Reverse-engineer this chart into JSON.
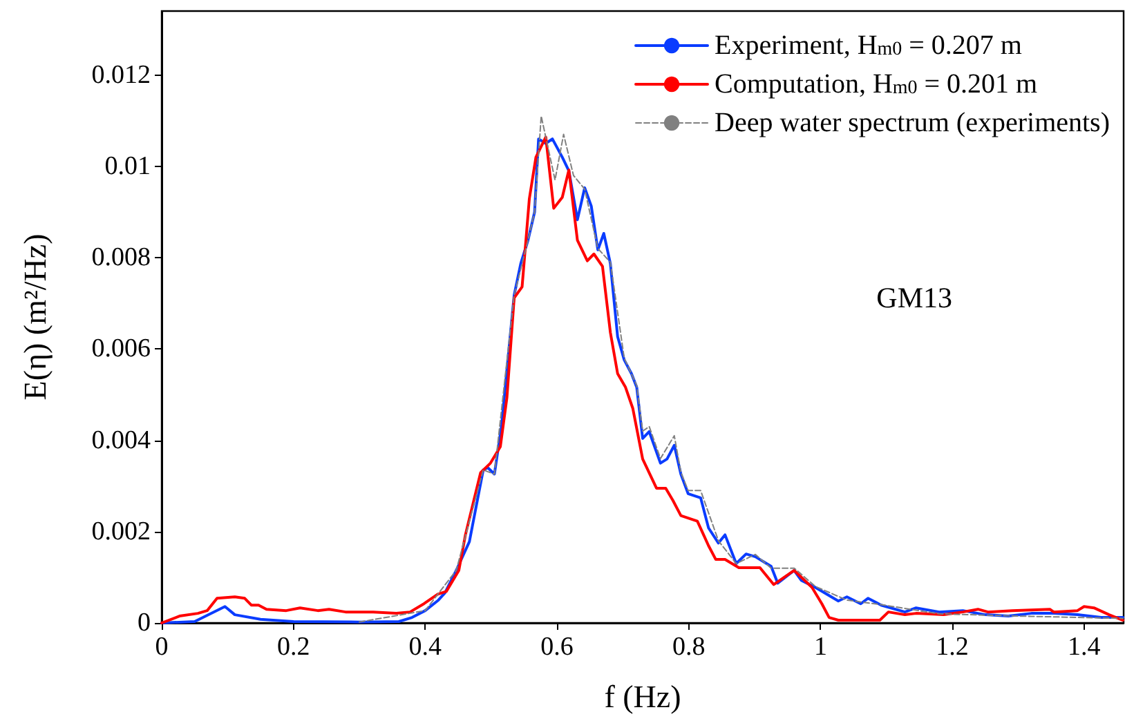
{
  "chart_data": {
    "type": "line",
    "xlabel": "f (Hz)",
    "ylabel": "E(η) (m²/Hz)",
    "annotations": [
      "GM13"
    ],
    "legend": "top right",
    "grid": false,
    "xlim": [
      0,
      1.46
    ],
    "xticks": [
      0,
      0.2,
      0.4,
      0.6,
      0.8,
      1,
      1.2,
      1.4
    ],
    "ylim": [
      0,
      0.0134
    ],
    "yticks": [
      0,
      0.002,
      0.004,
      0.006,
      0.008,
      0.01,
      0.012
    ],
    "series": [
      {
        "name": "Experiment, H$_{m0}$ = 0.207 m",
        "color": "#0a3cff",
        "x": [
          0,
          0.05,
          0.096,
          0.111,
          0.15,
          0.2,
          0.3,
          0.36,
          0.38,
          0.4,
          0.42,
          0.43,
          0.447,
          0.467,
          0.488,
          0.495,
          0.505,
          0.516,
          0.524,
          0.535,
          0.545,
          0.556,
          0.566,
          0.572,
          0.583,
          0.593,
          0.608,
          0.618,
          0.631,
          0.642,
          0.652,
          0.662,
          0.671,
          0.681,
          0.692,
          0.702,
          0.713,
          0.721,
          0.73,
          0.74,
          0.757,
          0.767,
          0.778,
          0.788,
          0.799,
          0.818,
          0.83,
          0.845,
          0.855,
          0.872,
          0.887,
          0.901,
          0.925,
          0.935,
          0.96,
          0.971,
          0.992,
          1.027,
          1.04,
          1.061,
          1.072,
          1.092,
          1.128,
          1.145,
          1.18,
          1.216,
          1.25,
          1.285,
          1.32,
          1.354,
          1.39,
          1.426,
          1.459
        ],
        "values": [
          0,
          3e-05,
          0.00036,
          0.00018,
          8e-05,
          3e-05,
          2e-05,
          3e-05,
          0.00012,
          0.00027,
          0.0005,
          0.00066,
          0.00115,
          0.00178,
          0.00335,
          0.0034,
          0.00326,
          0.00434,
          0.00555,
          0.00718,
          0.00787,
          0.00838,
          0.009,
          0.0106,
          0.0105,
          0.0106,
          0.0102,
          0.0099,
          0.00883,
          0.00953,
          0.00913,
          0.00817,
          0.00853,
          0.00787,
          0.00627,
          0.00576,
          0.00546,
          0.00516,
          0.00404,
          0.00419,
          0.0035,
          0.00359,
          0.00389,
          0.00326,
          0.00283,
          0.00274,
          0.00208,
          0.00175,
          0.00193,
          0.0013,
          0.00151,
          0.00145,
          0.00124,
          0.00087,
          0.00115,
          0.00093,
          0.00078,
          0.00048,
          0.00057,
          0.00042,
          0.00054,
          0.00039,
          0.00024,
          0.00033,
          0.00024,
          0.00027,
          0.00018,
          0.00015,
          0.00021,
          0.00021,
          0.00018,
          0.00012,
          0.00012
        ]
      },
      {
        "name": "Computation, H$_{m0}$ = 0.201 m",
        "color": "#ff0000",
        "x": [
          0,
          0.027,
          0.055,
          0.069,
          0.084,
          0.111,
          0.126,
          0.136,
          0.147,
          0.159,
          0.189,
          0.21,
          0.237,
          0.254,
          0.279,
          0.321,
          0.356,
          0.377,
          0.398,
          0.419,
          0.432,
          0.451,
          0.461,
          0.484,
          0.499,
          0.514,
          0.524,
          0.535,
          0.547,
          0.558,
          0.568,
          0.583,
          0.595,
          0.608,
          0.618,
          0.631,
          0.646,
          0.656,
          0.669,
          0.681,
          0.692,
          0.704,
          0.715,
          0.73,
          0.751,
          0.765,
          0.776,
          0.788,
          0.813,
          0.83,
          0.841,
          0.855,
          0.876,
          0.908,
          0.929,
          0.96,
          0.987,
          1.002,
          1.013,
          1.027,
          1.09,
          1.103,
          1.128,
          1.145,
          1.187,
          1.216,
          1.239,
          1.254,
          1.291,
          1.348,
          1.354,
          1.39,
          1.4,
          1.415,
          1.438,
          1.459
        ],
        "values": [
          0,
          0.00015,
          0.00021,
          0.00027,
          0.00054,
          0.00057,
          0.00054,
          0.00039,
          0.00039,
          0.0003,
          0.00027,
          0.00033,
          0.00027,
          0.0003,
          0.00024,
          0.00024,
          0.00021,
          0.00024,
          0.00042,
          0.00063,
          0.00069,
          0.00115,
          0.00193,
          0.00329,
          0.0035,
          0.00386,
          0.00494,
          0.00712,
          0.00736,
          0.00929,
          0.0102,
          0.01064,
          0.00908,
          0.00932,
          0.00992,
          0.00838,
          0.00793,
          0.00808,
          0.00781,
          0.00636,
          0.00546,
          0.00516,
          0.0047,
          0.00359,
          0.00295,
          0.00295,
          0.00268,
          0.00235,
          0.00223,
          0.00169,
          0.00139,
          0.00139,
          0.00121,
          0.00121,
          0.00084,
          0.00115,
          0.00078,
          0.00042,
          0.00012,
          6e-05,
          6e-05,
          0.00024,
          0.00018,
          0.00021,
          0.00018,
          0.00024,
          0.0003,
          0.00024,
          0.00027,
          0.0003,
          0.00024,
          0.00027,
          0.00036,
          0.00033,
          0.00018,
          6e-05
        ]
      },
      {
        "name": "Deep water spectrum (experiments)",
        "color": "#808080",
        "line_style": "dashed",
        "x": [
          0.3,
          0.4,
          0.447,
          0.488,
          0.505,
          0.535,
          0.556,
          0.566,
          0.576,
          0.597,
          0.61,
          0.625,
          0.642,
          0.662,
          0.681,
          0.702,
          0.721,
          0.73,
          0.74,
          0.757,
          0.778,
          0.788,
          0.799,
          0.818,
          0.845,
          0.872,
          0.901,
          0.925,
          0.96,
          0.992,
          1.04,
          1.092,
          1.18,
          1.3,
          1.459
        ],
        "values": [
          2e-05,
          0.00027,
          0.00115,
          0.00335,
          0.00326,
          0.00718,
          0.00838,
          0.009,
          0.0111,
          0.0097,
          0.0107,
          0.0098,
          0.0095,
          0.0082,
          0.0079,
          0.0058,
          0.0052,
          0.0042,
          0.0043,
          0.0036,
          0.0041,
          0.0033,
          0.0029,
          0.0029,
          0.0018,
          0.0013,
          0.0015,
          0.0012,
          0.0012,
          0.0008,
          0.0005,
          0.0004,
          0.0002,
          0.00015,
          0.0001
        ]
      }
    ]
  }
}
